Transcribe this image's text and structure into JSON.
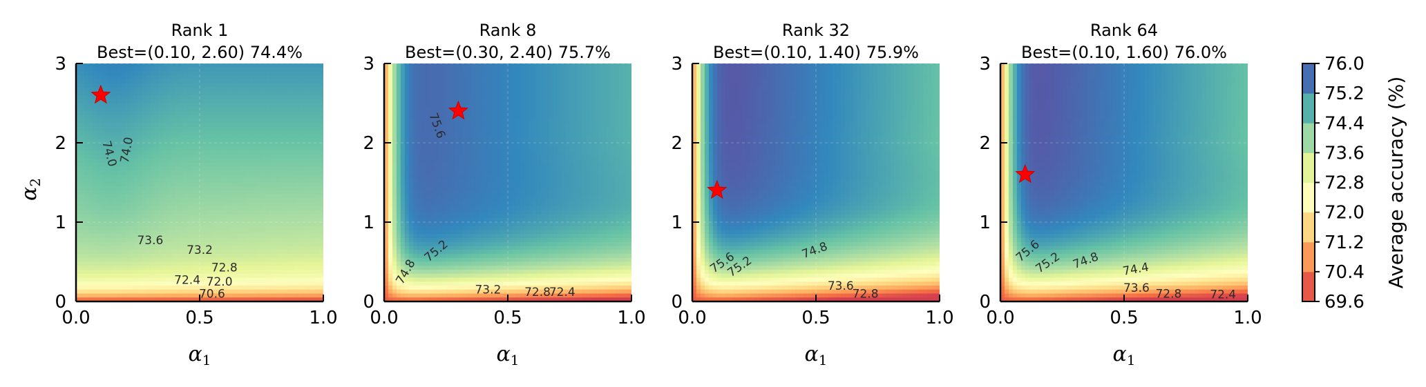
{
  "chart_data": {
    "type": "heatmap",
    "xlabel": "α₁",
    "ylabel": "α₂",
    "x_ticks": [
      "0.0",
      "0.5",
      "1.0"
    ],
    "y_ticks": [
      "0",
      "1",
      "2",
      "3"
    ],
    "xlim": [
      0,
      1
    ],
    "ylim": [
      0,
      3
    ],
    "colorbar": {
      "label": "Average accuracy (%)",
      "ticks": [
        "69.6",
        "70.4",
        "71.2",
        "72.0",
        "72.8",
        "73.6",
        "74.4",
        "75.2",
        "76.0"
      ],
      "range": [
        69.6,
        76.0
      ],
      "colormap": "Spectral",
      "colors": [
        "#d53e4f",
        "#f46d43",
        "#fdae61",
        "#fee08b",
        "#ffffbf",
        "#e6f598",
        "#abdda4",
        "#66c2a5",
        "#3288bd",
        "#5e4fa2"
      ]
    },
    "panels": [
      {
        "title": "Rank 1",
        "subtitle": "Best=(0.10, 2.60) 74.4%",
        "best": {
          "alpha1": 0.1,
          "alpha2": 2.6,
          "accuracy": 74.4
        },
        "contour_labels": [
          "74.0",
          "74.0",
          "73.6",
          "73.2",
          "72.8",
          "72.4",
          "72.0",
          "70.6"
        ]
      },
      {
        "title": "Rank 8",
        "subtitle": "Best=(0.30, 2.40) 75.7%",
        "best": {
          "alpha1": 0.3,
          "alpha2": 2.4,
          "accuracy": 75.7
        },
        "contour_labels": [
          "75.6",
          "75.2",
          "74.8",
          "73.2",
          "72.8",
          "72.4"
        ]
      },
      {
        "title": "Rank 32",
        "subtitle": "Best=(0.10, 1.40) 75.9%",
        "best": {
          "alpha1": 0.1,
          "alpha2": 1.4,
          "accuracy": 75.9
        },
        "contour_labels": [
          "75.6",
          "75.2",
          "74.8",
          "73.6",
          "72.8"
        ]
      },
      {
        "title": "Rank 64",
        "subtitle": "Best=(0.10, 1.60) 76.0%",
        "best": {
          "alpha1": 0.1,
          "alpha2": 1.6,
          "accuracy": 76.0
        },
        "contour_labels": [
          "75.6",
          "75.2",
          "74.8",
          "74.4",
          "73.6",
          "72.8",
          "72.4"
        ]
      }
    ]
  }
}
